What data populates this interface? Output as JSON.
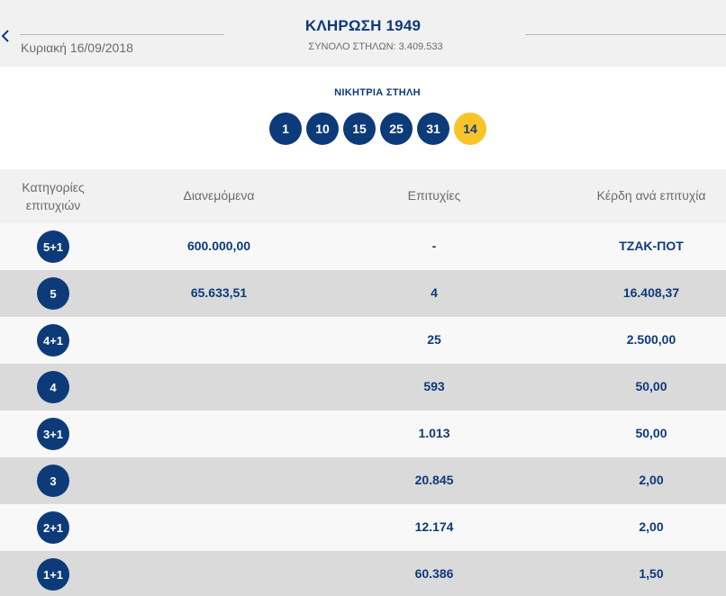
{
  "header": {
    "title": "ΚΛΗΡΩΣΗ 1949",
    "date": "Κυριακή 16/09/2018",
    "total_columns": "ΣΥΝΟΛΟ ΣΤΗΛΩΝ: 3.409.533",
    "back_icon": "chevron-left-icon"
  },
  "winning": {
    "title": "ΝΙΚΗΤΡΙΑ ΣΤΗΛΗ",
    "numbers": [
      "1",
      "10",
      "15",
      "25",
      "31"
    ],
    "joker": "14",
    "colors": {
      "number": "#0d3b7a",
      "joker": "#f7c42a"
    }
  },
  "table": {
    "headers": {
      "category": "Κατηγορίες επιτυχιών",
      "distributed": "Διανεμόμενα",
      "successes": "Επιτυχίες",
      "prize": "Κέρδη ανά επιτυχία"
    },
    "rows": [
      {
        "category": "5+1",
        "distributed": "600.000,00",
        "successes": "-",
        "prize": "ΤΖΑΚ-ΠΟΤ"
      },
      {
        "category": "5",
        "distributed": "65.633,51",
        "successes": "4",
        "prize": "16.408,37"
      },
      {
        "category": "4+1",
        "distributed": "",
        "successes": "25",
        "prize": "2.500,00"
      },
      {
        "category": "4",
        "distributed": "",
        "successes": "593",
        "prize": "50,00"
      },
      {
        "category": "3+1",
        "distributed": "",
        "successes": "1.013",
        "prize": "50,00"
      },
      {
        "category": "3",
        "distributed": "",
        "successes": "20.845",
        "prize": "2,00"
      },
      {
        "category": "2+1",
        "distributed": "",
        "successes": "12.174",
        "prize": "2,00"
      },
      {
        "category": "1+1",
        "distributed": "",
        "successes": "60.386",
        "prize": "1,50"
      }
    ]
  }
}
